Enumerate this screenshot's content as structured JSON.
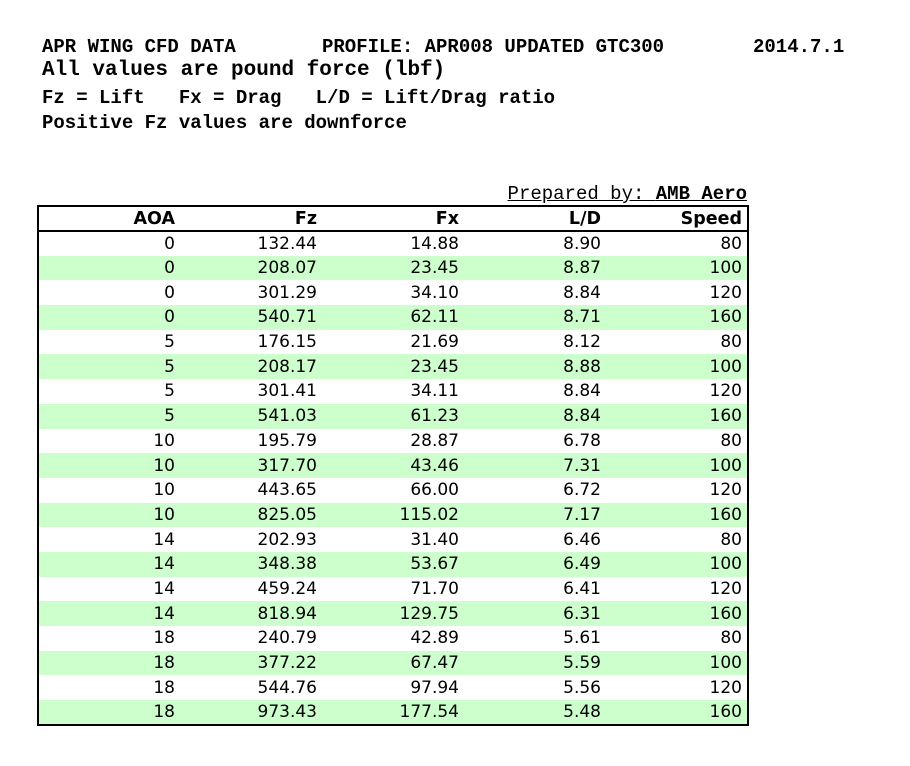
{
  "header": {
    "line1": {
      "left": "APR WING CFD DATA",
      "middle": "PROFILE: APR008 UPDATED GTC300",
      "right": "2014.7.1"
    },
    "line2": "All values are pound force (lbf)",
    "line3": "Fz = Lift   Fx = Drag   L/D = Lift/Drag ratio",
    "line4": "Positive Fz values are downforce"
  },
  "prepared_by": {
    "label": "Prepared by: ",
    "value": "AMB Aero"
  },
  "table": {
    "columns": [
      "AOA",
      "Fz",
      "Fx",
      "L/D",
      "Speed"
    ],
    "rows": [
      [
        "0",
        "132.44",
        "14.88",
        "8.90",
        "80"
      ],
      [
        "0",
        "208.07",
        "23.45",
        "8.87",
        "100"
      ],
      [
        "0",
        "301.29",
        "34.10",
        "8.84",
        "120"
      ],
      [
        "0",
        "540.71",
        "62.11",
        "8.71",
        "160"
      ],
      [
        "5",
        "176.15",
        "21.69",
        "8.12",
        "80"
      ],
      [
        "5",
        "208.17",
        "23.45",
        "8.88",
        "100"
      ],
      [
        "5",
        "301.41",
        "34.11",
        "8.84",
        "120"
      ],
      [
        "5",
        "541.03",
        "61.23",
        "8.84",
        "160"
      ],
      [
        "10",
        "195.79",
        "28.87",
        "6.78",
        "80"
      ],
      [
        "10",
        "317.70",
        "43.46",
        "7.31",
        "100"
      ],
      [
        "10",
        "443.65",
        "66.00",
        "6.72",
        "120"
      ],
      [
        "10",
        "825.05",
        "115.02",
        "7.17",
        "160"
      ],
      [
        "14",
        "202.93",
        "31.40",
        "6.46",
        "80"
      ],
      [
        "14",
        "348.38",
        "53.67",
        "6.49",
        "100"
      ],
      [
        "14",
        "459.24",
        "71.70",
        "6.41",
        "120"
      ],
      [
        "14",
        "818.94",
        "129.75",
        "6.31",
        "160"
      ],
      [
        "18",
        "240.79",
        "42.89",
        "5.61",
        "80"
      ],
      [
        "18",
        "377.22",
        "67.47",
        "5.59",
        "100"
      ],
      [
        "18",
        "544.76",
        "97.94",
        "5.56",
        "120"
      ],
      [
        "18",
        "973.43",
        "177.54",
        "5.48",
        "160"
      ]
    ]
  },
  "colors": {
    "row_stripe": "#ccffcc",
    "border": "#000000",
    "text": "#000000",
    "background": "#ffffff"
  }
}
